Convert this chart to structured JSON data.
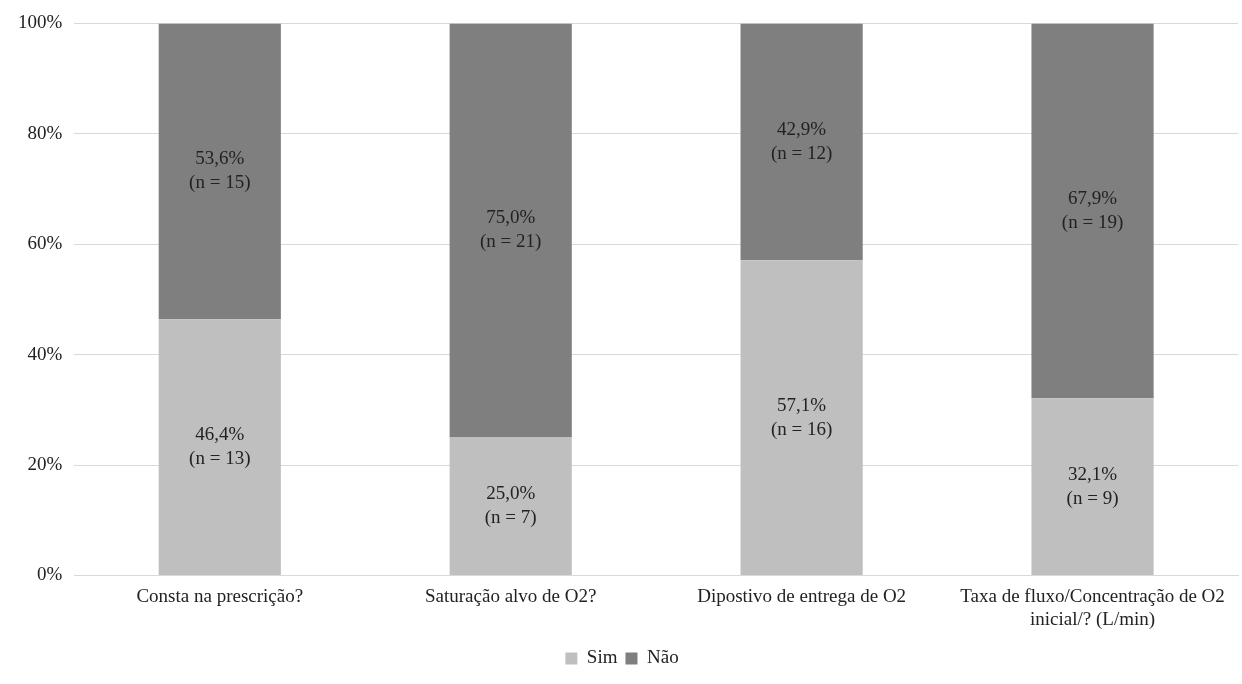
{
  "chart_data": {
    "type": "bar",
    "stacked": true,
    "categories": [
      "Consta na prescrição?",
      "Saturação alvo de O2?",
      "Dipostivo de entrega de O2",
      "Taxa de fluxo/Concentração de O2 inicial/? (L/min)"
    ],
    "series": [
      {
        "name": "Sim",
        "color": "#bfbfbf",
        "values": [
          46.4,
          25.0,
          57.1,
          32.1
        ],
        "value_labels": [
          "46,4%\n(n = 13)",
          "25,0%\n(n = 7)",
          "57,1%\n(n = 16)",
          "32,1%\n(n = 9)"
        ]
      },
      {
        "name": "Não",
        "color": "#7f7f7f",
        "values": [
          53.6,
          75.0,
          42.9,
          67.9
        ],
        "value_labels": [
          "53,6%\n(n = 15)",
          "75,0%\n(n = 21)",
          "42,9%\n(n = 12)",
          "67,9%\n(n = 19)"
        ]
      }
    ],
    "ylim": [
      0,
      100
    ],
    "yticks": [
      {
        "value": 0,
        "label": "0%"
      },
      {
        "value": 20,
        "label": "20%"
      },
      {
        "value": 40,
        "label": "40%"
      },
      {
        "value": 60,
        "label": "60%"
      },
      {
        "value": 80,
        "label": "80%"
      },
      {
        "value": 100,
        "label": "100%"
      }
    ],
    "grid": "y",
    "legend": "bottom"
  }
}
